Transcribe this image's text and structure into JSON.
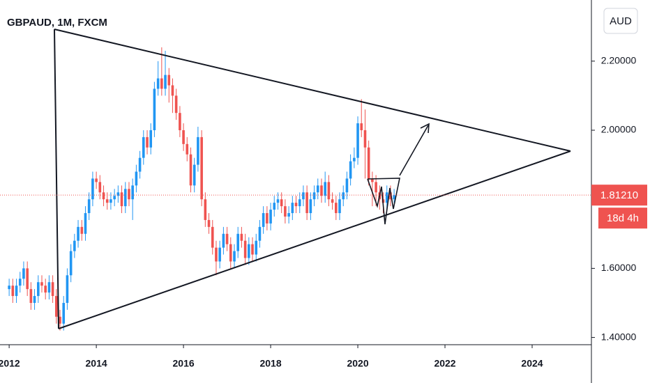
{
  "chart_data": {
    "type": "candlestick",
    "title": "GBPAUD, 1M, FXCM",
    "currency_button": "AUD",
    "up_color": "#2196f3",
    "down_color": "#ef5350",
    "xlim": [
      2011.79,
      2025.36
    ],
    "ylim": [
      1.379,
      2.377
    ],
    "xticks": [
      2012,
      2014,
      2016,
      2018,
      2020,
      2022,
      2024
    ],
    "yticks": [
      {
        "value": 1.4,
        "label": "1.40000"
      },
      {
        "value": 1.6,
        "label": "1.60000"
      },
      {
        "value": 2.0,
        "label": "2.00000"
      },
      {
        "value": 2.2,
        "label": "2.20000"
      }
    ],
    "last_price": {
      "value": 1.8121,
      "label": "1.81210"
    },
    "countdown": "18d 4h",
    "x": [
      2012,
      2012.083,
      2012.167,
      2012.25,
      2012.333,
      2012.417,
      2012.5,
      2012.583,
      2012.667,
      2012.75,
      2012.833,
      2012.917,
      2013,
      2013.083,
      2013.167,
      2013.25,
      2013.333,
      2013.417,
      2013.5,
      2013.583,
      2013.667,
      2013.75,
      2013.833,
      2013.917,
      2014,
      2014.083,
      2014.167,
      2014.25,
      2014.333,
      2014.417,
      2014.5,
      2014.583,
      2014.667,
      2014.75,
      2014.833,
      2014.917,
      2015,
      2015.083,
      2015.167,
      2015.25,
      2015.333,
      2015.417,
      2015.5,
      2015.583,
      2015.667,
      2015.75,
      2015.833,
      2015.917,
      2016,
      2016.083,
      2016.167,
      2016.25,
      2016.333,
      2016.417,
      2016.5,
      2016.583,
      2016.667,
      2016.75,
      2016.833,
      2016.917,
      2017,
      2017.083,
      2017.167,
      2017.25,
      2017.333,
      2017.417,
      2017.5,
      2017.583,
      2017.667,
      2017.75,
      2017.833,
      2017.917,
      2018,
      2018.083,
      2018.167,
      2018.25,
      2018.333,
      2018.417,
      2018.5,
      2018.583,
      2018.667,
      2018.75,
      2018.833,
      2018.917,
      2019,
      2019.083,
      2019.167,
      2019.25,
      2019.333,
      2019.417,
      2019.5,
      2019.583,
      2019.667,
      2019.75,
      2019.833,
      2019.917,
      2020,
      2020.083,
      2020.167,
      2020.25,
      2020.333,
      2020.417,
      2020.5,
      2020.583,
      2020.667,
      2020.75,
      2020.833
    ],
    "open": [
      1.54,
      1.55,
      1.52,
      1.55,
      1.57,
      1.6,
      1.54,
      1.5,
      1.52,
      1.56,
      1.55,
      1.53,
      1.56,
      1.52,
      1.46,
      1.44,
      1.5,
      1.58,
      1.65,
      1.68,
      1.72,
      1.7,
      1.76,
      1.8,
      1.86,
      1.85,
      1.82,
      1.8,
      1.79,
      1.8,
      1.81,
      1.82,
      1.78,
      1.83,
      1.8,
      1.84,
      1.88,
      1.92,
      1.98,
      1.95,
      2.0,
      2.12,
      2.15,
      2.12,
      2.16,
      2.13,
      2.1,
      2.05,
      2.0,
      1.96,
      1.93,
      1.84,
      1.9,
      1.98,
      1.8,
      1.74,
      1.72,
      1.66,
      1.62,
      1.66,
      1.7,
      1.67,
      1.62,
      1.65,
      1.7,
      1.68,
      1.63,
      1.67,
      1.64,
      1.68,
      1.72,
      1.76,
      1.73,
      1.77,
      1.79,
      1.8,
      1.78,
      1.75,
      1.76,
      1.79,
      1.78,
      1.8,
      1.82,
      1.76,
      1.8,
      1.82,
      1.84,
      1.81,
      1.85,
      1.8,
      1.79,
      1.76,
      1.8,
      1.82,
      1.86,
      1.91,
      1.92,
      2.02,
      2.0,
      1.95,
      1.86,
      1.85,
      1.82,
      1.8,
      1.79,
      1.82,
      1.8
    ],
    "high": [
      1.57,
      1.57,
      1.57,
      1.59,
      1.62,
      1.62,
      1.56,
      1.54,
      1.58,
      1.58,
      1.57,
      1.58,
      1.58,
      1.54,
      1.48,
      1.52,
      1.6,
      1.67,
      1.7,
      1.74,
      1.74,
      1.78,
      1.82,
      1.88,
      1.88,
      1.87,
      1.84,
      1.82,
      1.82,
      1.83,
      1.84,
      1.84,
      1.85,
      1.85,
      1.86,
      1.9,
      1.94,
      2.0,
      2.0,
      2.02,
      2.14,
      2.2,
      2.24,
      2.23,
      2.18,
      2.15,
      2.12,
      2.07,
      2.02,
      1.98,
      1.95,
      1.92,
      2.01,
      2.0,
      1.82,
      1.76,
      1.74,
      1.68,
      1.68,
      1.72,
      1.72,
      1.69,
      1.67,
      1.72,
      1.72,
      1.7,
      1.69,
      1.69,
      1.7,
      1.74,
      1.78,
      1.78,
      1.79,
      1.81,
      1.82,
      1.82,
      1.8,
      1.78,
      1.81,
      1.81,
      1.82,
      1.84,
      1.84,
      1.82,
      1.84,
      1.86,
      1.86,
      1.88,
      1.87,
      1.82,
      1.81,
      1.82,
      1.84,
      1.88,
      1.93,
      1.95,
      2.04,
      2.09,
      2.06,
      1.97,
      1.88,
      1.87,
      1.84,
      1.82,
      1.84,
      1.84,
      1.83
    ],
    "low": [
      1.52,
      1.5,
      1.5,
      1.53,
      1.55,
      1.52,
      1.48,
      1.48,
      1.5,
      1.53,
      1.51,
      1.51,
      1.5,
      1.44,
      1.42,
      1.42,
      1.48,
      1.56,
      1.63,
      1.66,
      1.68,
      1.68,
      1.74,
      1.78,
      1.83,
      1.8,
      1.78,
      1.77,
      1.77,
      1.78,
      1.79,
      1.76,
      1.76,
      1.78,
      1.74,
      1.82,
      1.86,
      1.9,
      1.93,
      1.93,
      1.98,
      2.1,
      2.1,
      2.1,
      2.08,
      2.05,
      2.03,
      1.98,
      1.94,
      1.91,
      1.82,
      1.82,
      1.88,
      1.78,
      1.72,
      1.7,
      1.64,
      1.58,
      1.6,
      1.64,
      1.65,
      1.6,
      1.6,
      1.63,
      1.66,
      1.61,
      1.61,
      1.62,
      1.62,
      1.66,
      1.7,
      1.71,
      1.71,
      1.75,
      1.77,
      1.76,
      1.73,
      1.73,
      1.74,
      1.76,
      1.76,
      1.78,
      1.74,
      1.74,
      1.78,
      1.8,
      1.79,
      1.79,
      1.78,
      1.77,
      1.74,
      1.74,
      1.78,
      1.8,
      1.84,
      1.89,
      1.9,
      1.98,
      1.86,
      1.84,
      1.78,
      1.78,
      1.77,
      1.76,
      1.77,
      1.78,
      1.79
    ],
    "close": [
      1.55,
      1.52,
      1.55,
      1.57,
      1.6,
      1.54,
      1.5,
      1.52,
      1.56,
      1.55,
      1.53,
      1.56,
      1.52,
      1.46,
      1.44,
      1.5,
      1.58,
      1.65,
      1.68,
      1.72,
      1.7,
      1.76,
      1.8,
      1.86,
      1.85,
      1.82,
      1.8,
      1.79,
      1.8,
      1.81,
      1.82,
      1.78,
      1.83,
      1.8,
      1.84,
      1.88,
      1.92,
      1.98,
      1.95,
      2.0,
      2.12,
      2.15,
      2.12,
      2.16,
      2.13,
      2.1,
      2.05,
      2.0,
      1.96,
      1.93,
      1.84,
      1.9,
      1.98,
      1.8,
      1.74,
      1.72,
      1.66,
      1.62,
      1.66,
      1.7,
      1.67,
      1.62,
      1.65,
      1.7,
      1.68,
      1.63,
      1.67,
      1.64,
      1.68,
      1.72,
      1.76,
      1.73,
      1.77,
      1.79,
      1.8,
      1.78,
      1.75,
      1.76,
      1.79,
      1.78,
      1.8,
      1.82,
      1.76,
      1.8,
      1.82,
      1.84,
      1.81,
      1.85,
      1.8,
      1.79,
      1.76,
      1.8,
      1.82,
      1.86,
      1.91,
      1.92,
      2.02,
      2.0,
      1.95,
      1.86,
      1.85,
      1.82,
      1.8,
      1.79,
      1.82,
      1.8,
      1.8121
    ]
  }
}
